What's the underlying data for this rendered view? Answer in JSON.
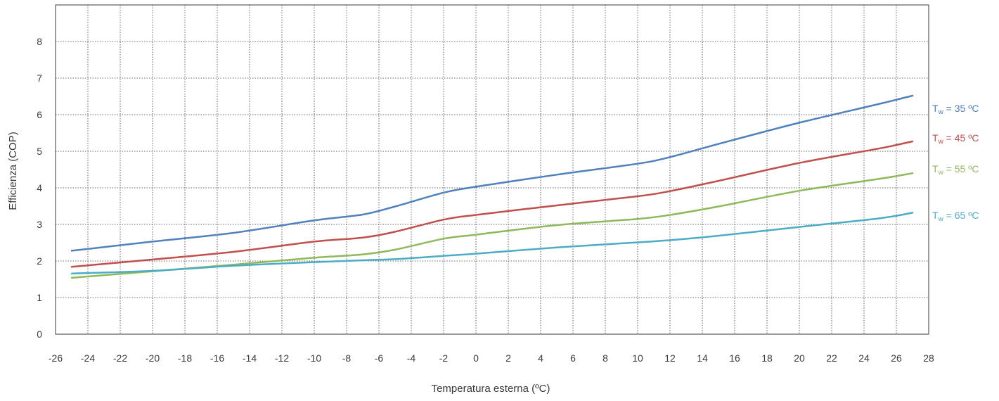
{
  "chart_data": {
    "type": "line",
    "xlabel": "Temperatura esterna (ºC)",
    "ylabel": "Efficienza (COP)",
    "xlim": [
      -26,
      28
    ],
    "ylim": [
      0,
      9
    ],
    "x_ticks": [
      -26,
      -24,
      -22,
      -20,
      -18,
      -16,
      -14,
      -12,
      -10,
      -8,
      -6,
      -4,
      -2,
      0,
      2,
      4,
      6,
      8,
      10,
      12,
      14,
      16,
      18,
      20,
      22,
      24,
      26,
      28
    ],
    "y_ticks": [
      0,
      1,
      2,
      3,
      4,
      5,
      6,
      7,
      8
    ],
    "x_tick_labels": [
      "-26",
      "-24",
      "-22",
      "-20",
      "-18",
      "-16",
      "-14",
      "-12",
      "-10",
      "-8",
      "-6",
      "-4",
      "-2",
      "0",
      "2",
      "4",
      "6",
      "8",
      "10",
      "12",
      "14",
      "16",
      "18",
      "20",
      "22",
      "24",
      "26",
      "28"
    ],
    "y_tick_labels": [
      "0",
      "1",
      "2",
      "3",
      "4",
      "5",
      "6",
      "7",
      "8"
    ],
    "grid": true,
    "legend": "inline-right",
    "x": [
      -25,
      -20,
      -15,
      -10,
      -7,
      -5,
      -2,
      0,
      5,
      10,
      12,
      15,
      20,
      25,
      27
    ],
    "series": [
      {
        "label_main": "T",
        "label_sub": "w",
        "label_rest": " = 35 ºC",
        "color": "#4f81bd",
        "values": [
          2.28,
          2.53,
          2.77,
          3.11,
          3.27,
          3.49,
          3.87,
          4.03,
          4.36,
          4.66,
          4.84,
          5.2,
          5.78,
          6.3,
          6.52
        ]
      },
      {
        "label_main": "T",
        "label_sub": "w",
        "label_rest": " = 45 ºC",
        "color": "#c0504d",
        "values": [
          1.84,
          2.04,
          2.25,
          2.53,
          2.64,
          2.8,
          3.13,
          3.26,
          3.52,
          3.77,
          3.91,
          4.19,
          4.68,
          5.08,
          5.27
        ]
      },
      {
        "label_main": "T",
        "label_sub": "w",
        "label_rest": " = 55 ºC",
        "color": "#8eb95a",
        "values": [
          1.54,
          1.72,
          1.9,
          2.09,
          2.18,
          2.31,
          2.61,
          2.72,
          2.98,
          3.15,
          3.26,
          3.49,
          3.92,
          4.25,
          4.4
        ]
      },
      {
        "label_main": "T",
        "label_sub": "w",
        "label_rest": " = 65 ºC",
        "color": "#4bacc6",
        "values": [
          1.66,
          1.73,
          1.87,
          1.97,
          2.02,
          2.05,
          2.14,
          2.2,
          2.37,
          2.51,
          2.57,
          2.69,
          2.93,
          3.17,
          3.32
        ]
      }
    ]
  }
}
